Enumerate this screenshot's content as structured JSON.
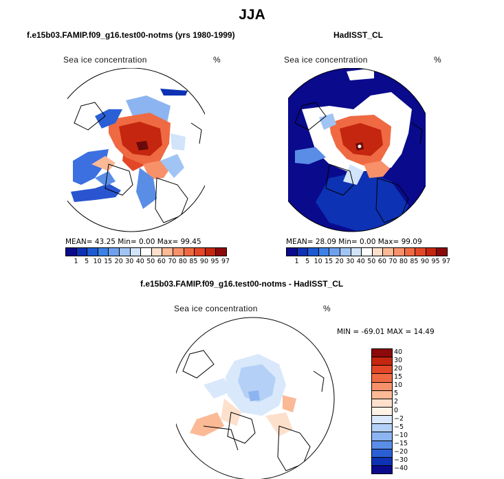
{
  "title": "JJA",
  "panel_left": {
    "title": "f.e15b03.FAMIP.f09_g16.test00-notms (yrs 1980-1999)",
    "label": "Sea ice concentration",
    "units": "%",
    "stats": "MEAN=  43.25  Min=   0.00  Max=  99.45"
  },
  "panel_right": {
    "title": "HadISST_CL",
    "label": "Sea ice concentration",
    "units": "%",
    "stats": "MEAN=  28.09  Min=   0.00  Max=  99.09"
  },
  "panel_diff": {
    "title": "f.e15b03.FAMIP.f09_g16.test00-notms - HadISST_CL",
    "label": "Sea ice concentration",
    "units": "%",
    "stats": "MIN = -69.01 MAX =  14.49"
  },
  "colorbar_levels": [
    "1",
    "5",
    "10",
    "15",
    "20",
    "30",
    "40",
    "50",
    "60",
    "70",
    "80",
    "85",
    "90",
    "95",
    "97"
  ],
  "colorbar_colors": [
    "#0a0a8c",
    "#0d32b4",
    "#1e5ad2",
    "#3c82e6",
    "#6ea0ee",
    "#a0c4f4",
    "#d2e4fa",
    "#ffffff",
    "#fde0cc",
    "#fbb996",
    "#f7916a",
    "#ef6a43",
    "#e34727",
    "#c5260f",
    "#8c0a0a"
  ],
  "diff_levels": [
    "40",
    "30",
    "20",
    "15",
    "10",
    "5",
    "2",
    "0",
    "−2",
    "−5",
    "−10",
    "−15",
    "−20",
    "−30",
    "−40"
  ],
  "diff_colors": [
    "#8c0a0a",
    "#c5260f",
    "#e34727",
    "#ef6a43",
    "#f7916a",
    "#fbb996",
    "#fde0cc",
    "#fff3e8",
    "#d9e8fb",
    "#b4d0f6",
    "#8cb4f0",
    "#5a8ee6",
    "#2a5fd6",
    "#0d32b4",
    "#0a0a8c"
  ]
}
